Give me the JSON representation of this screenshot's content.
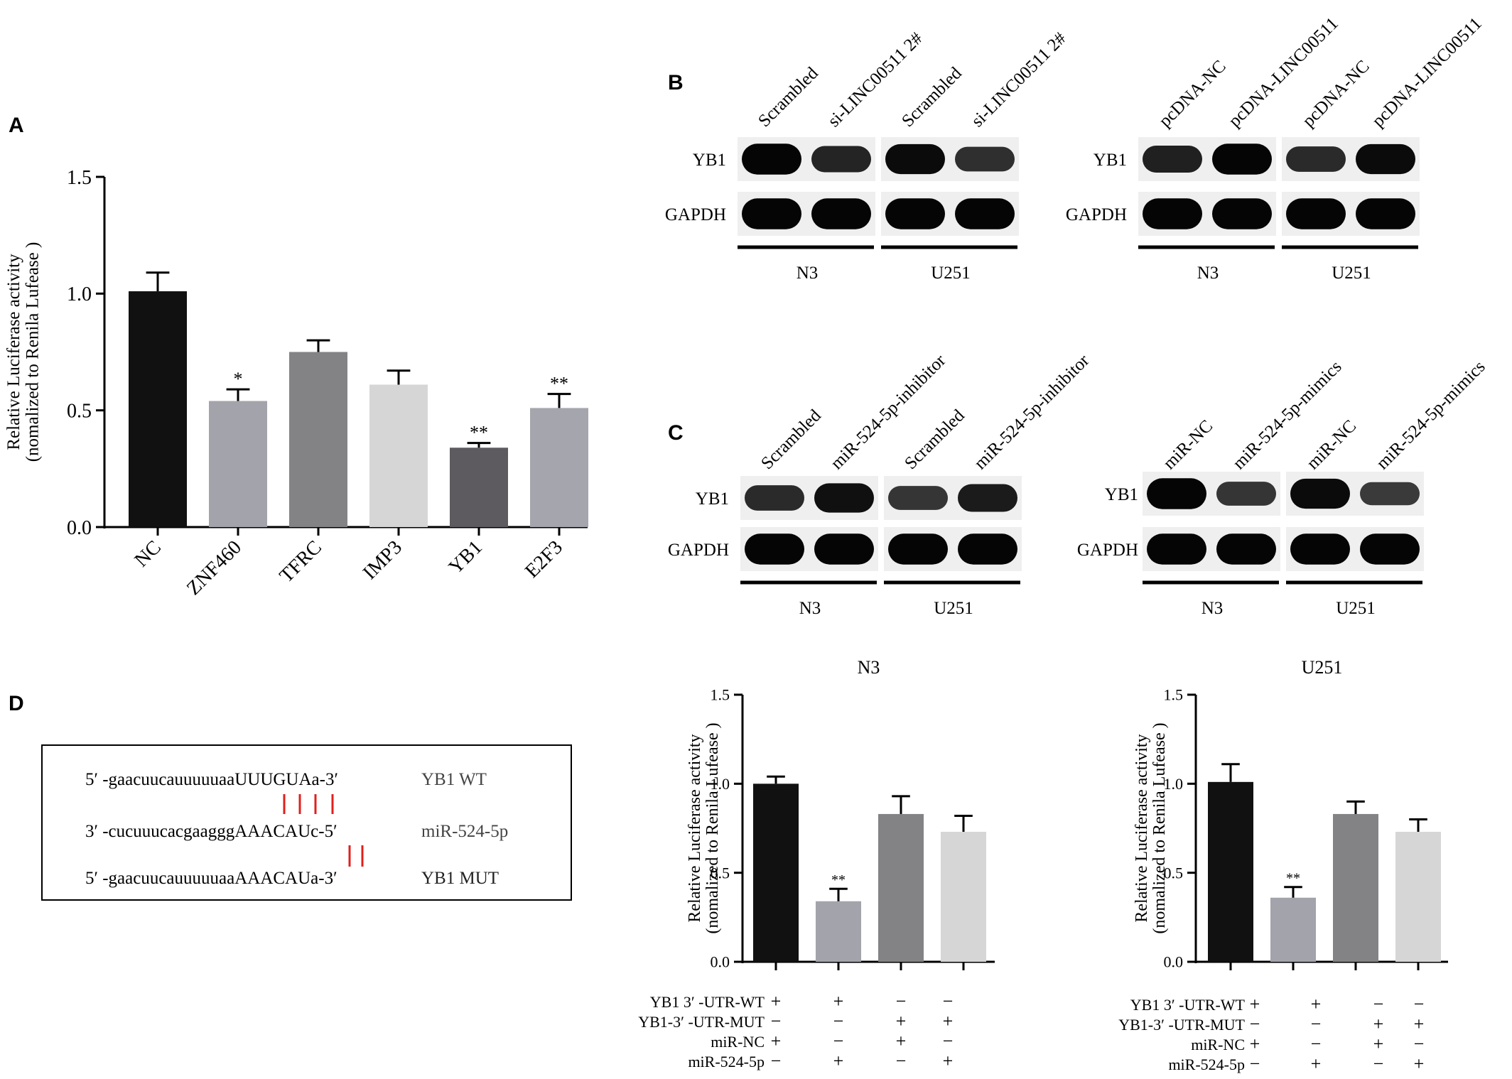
{
  "panels": {
    "a": {
      "letter": "A"
    },
    "b": {
      "letter": "B"
    },
    "c": {
      "letter": "C"
    },
    "d": {
      "letter": "D"
    }
  },
  "chart_data": [
    {
      "id": "A",
      "type": "bar",
      "ylabel_line1": "Relative Luciferase activity",
      "ylabel_line2": "(nomalized to Renila Lufease )",
      "ylim": [
        0,
        1.5
      ],
      "yticks": [
        "0.0",
        "0.5",
        "1.0",
        "1.5"
      ],
      "categories": [
        "NC",
        "ZNF460",
        "TFRC",
        "IMP3",
        "YB1",
        "E2F3"
      ],
      "values": [
        1.01,
        0.54,
        0.75,
        0.61,
        0.34,
        0.51
      ],
      "errors": [
        0.08,
        0.05,
        0.05,
        0.06,
        0.02,
        0.06
      ],
      "significance": [
        "",
        "*",
        "",
        "",
        "**",
        "**"
      ],
      "colors": [
        "#111111",
        "#a3a3ab",
        "#838386",
        "#d6d6d6",
        "#5d5b5f",
        "#a5a5ad"
      ]
    },
    {
      "id": "D-N3",
      "type": "bar",
      "title": "N3",
      "ylabel_line1": "Relative Luciferase activity",
      "ylabel_line2": "(nomalized to Renila Lufease )",
      "ylim": [
        0,
        1.5
      ],
      "yticks": [
        "0.0",
        "0.5",
        "1.0",
        "1.5"
      ],
      "values": [
        1.0,
        0.34,
        0.83,
        0.73
      ],
      "errors": [
        0.04,
        0.07,
        0.1,
        0.09
      ],
      "significance": [
        "",
        "**",
        "",
        ""
      ],
      "colors": [
        "#111111",
        "#a3a3ab",
        "#838386",
        "#d6d6d6"
      ]
    },
    {
      "id": "D-U251",
      "type": "bar",
      "title": "U251",
      "ylabel_line1": "Relative Luciferase activity",
      "ylabel_line2": "(nomalized to Renila Lufease )",
      "ylim": [
        0,
        1.5
      ],
      "yticks": [
        "0.0",
        "0.5",
        "1.0",
        "1.5"
      ],
      "values": [
        1.01,
        0.36,
        0.83,
        0.73
      ],
      "errors": [
        0.1,
        0.06,
        0.07,
        0.07
      ],
      "significance": [
        "",
        "**",
        "",
        ""
      ],
      "colors": [
        "#111111",
        "#a3a3ab",
        "#838386",
        "#d6d6d6"
      ]
    }
  ],
  "conditions": {
    "rows": [
      {
        "label": "YB1 3′ -UTR-WT",
        "marks": [
          "+",
          "+",
          "−",
          "−"
        ]
      },
      {
        "label": "YB1-3′ -UTR-MUT",
        "marks": [
          "−",
          "−",
          "+",
          "+"
        ]
      },
      {
        "label": "miR-NC",
        "marks": [
          "+",
          "−",
          "+",
          "−"
        ]
      },
      {
        "label": "miR-524-5p",
        "marks": [
          "−",
          "+",
          "−",
          "+"
        ]
      }
    ]
  },
  "blots": {
    "b_left": {
      "lanes": [
        "Scrambled",
        "si-LINC00511 2#",
        "Scrambled",
        "si-LINC00511 2#"
      ],
      "rows": [
        "YB1",
        "GAPDH"
      ],
      "groups": [
        "N3",
        "U251"
      ],
      "yb1_intensity": [
        1.0,
        0.7,
        0.95,
        0.6
      ]
    },
    "b_right": {
      "lanes": [
        "pcDNA-NC",
        "pcDNA-LINC00511",
        "pcDNA-NC",
        "pcDNA-LINC00511"
      ],
      "rows": [
        "YB1",
        "GAPDH"
      ],
      "groups": [
        "N3",
        "U251"
      ],
      "yb1_intensity": [
        0.75,
        1.0,
        0.65,
        0.95
      ]
    },
    "c_left": {
      "lanes": [
        "Scrambled",
        "miR-524-5p-inhibitor",
        "Scrambled",
        "miR-524-5p-inhibitor"
      ],
      "rows": [
        "YB1",
        "GAPDH"
      ],
      "groups": [
        "N3",
        "U251"
      ],
      "yb1_intensity": [
        0.65,
        0.9,
        0.55,
        0.8
      ]
    },
    "c_right": {
      "lanes": [
        "miR-NC",
        "miR-524-5p-mimics",
        "miR-NC",
        "miR-524-5p-mimics"
      ],
      "rows": [
        "YB1",
        "GAPDH"
      ],
      "groups": [
        "N3",
        "U251"
      ],
      "yb1_intensity": [
        1.0,
        0.55,
        0.95,
        0.5
      ]
    }
  },
  "sequence": {
    "line1": {
      "prefix": "5′",
      "body": " -gaacuucauuuuuaa",
      "bold": "UUUGU",
      "suffix": "Aa-3′",
      "tag": "YB1 WT"
    },
    "line2": {
      "prefix": "3′",
      "body": " -cucuuucacgaaggg",
      "bold": "AAACAU",
      "suffix": "c-5′",
      "tag": "miR-524-5p"
    },
    "line3": {
      "prefix": "5′",
      "body": " -gaacuucauuuuuaa",
      "bold": "AAACAU",
      "suffix": "a-3′",
      "tag": "YB1 MUT"
    }
  }
}
